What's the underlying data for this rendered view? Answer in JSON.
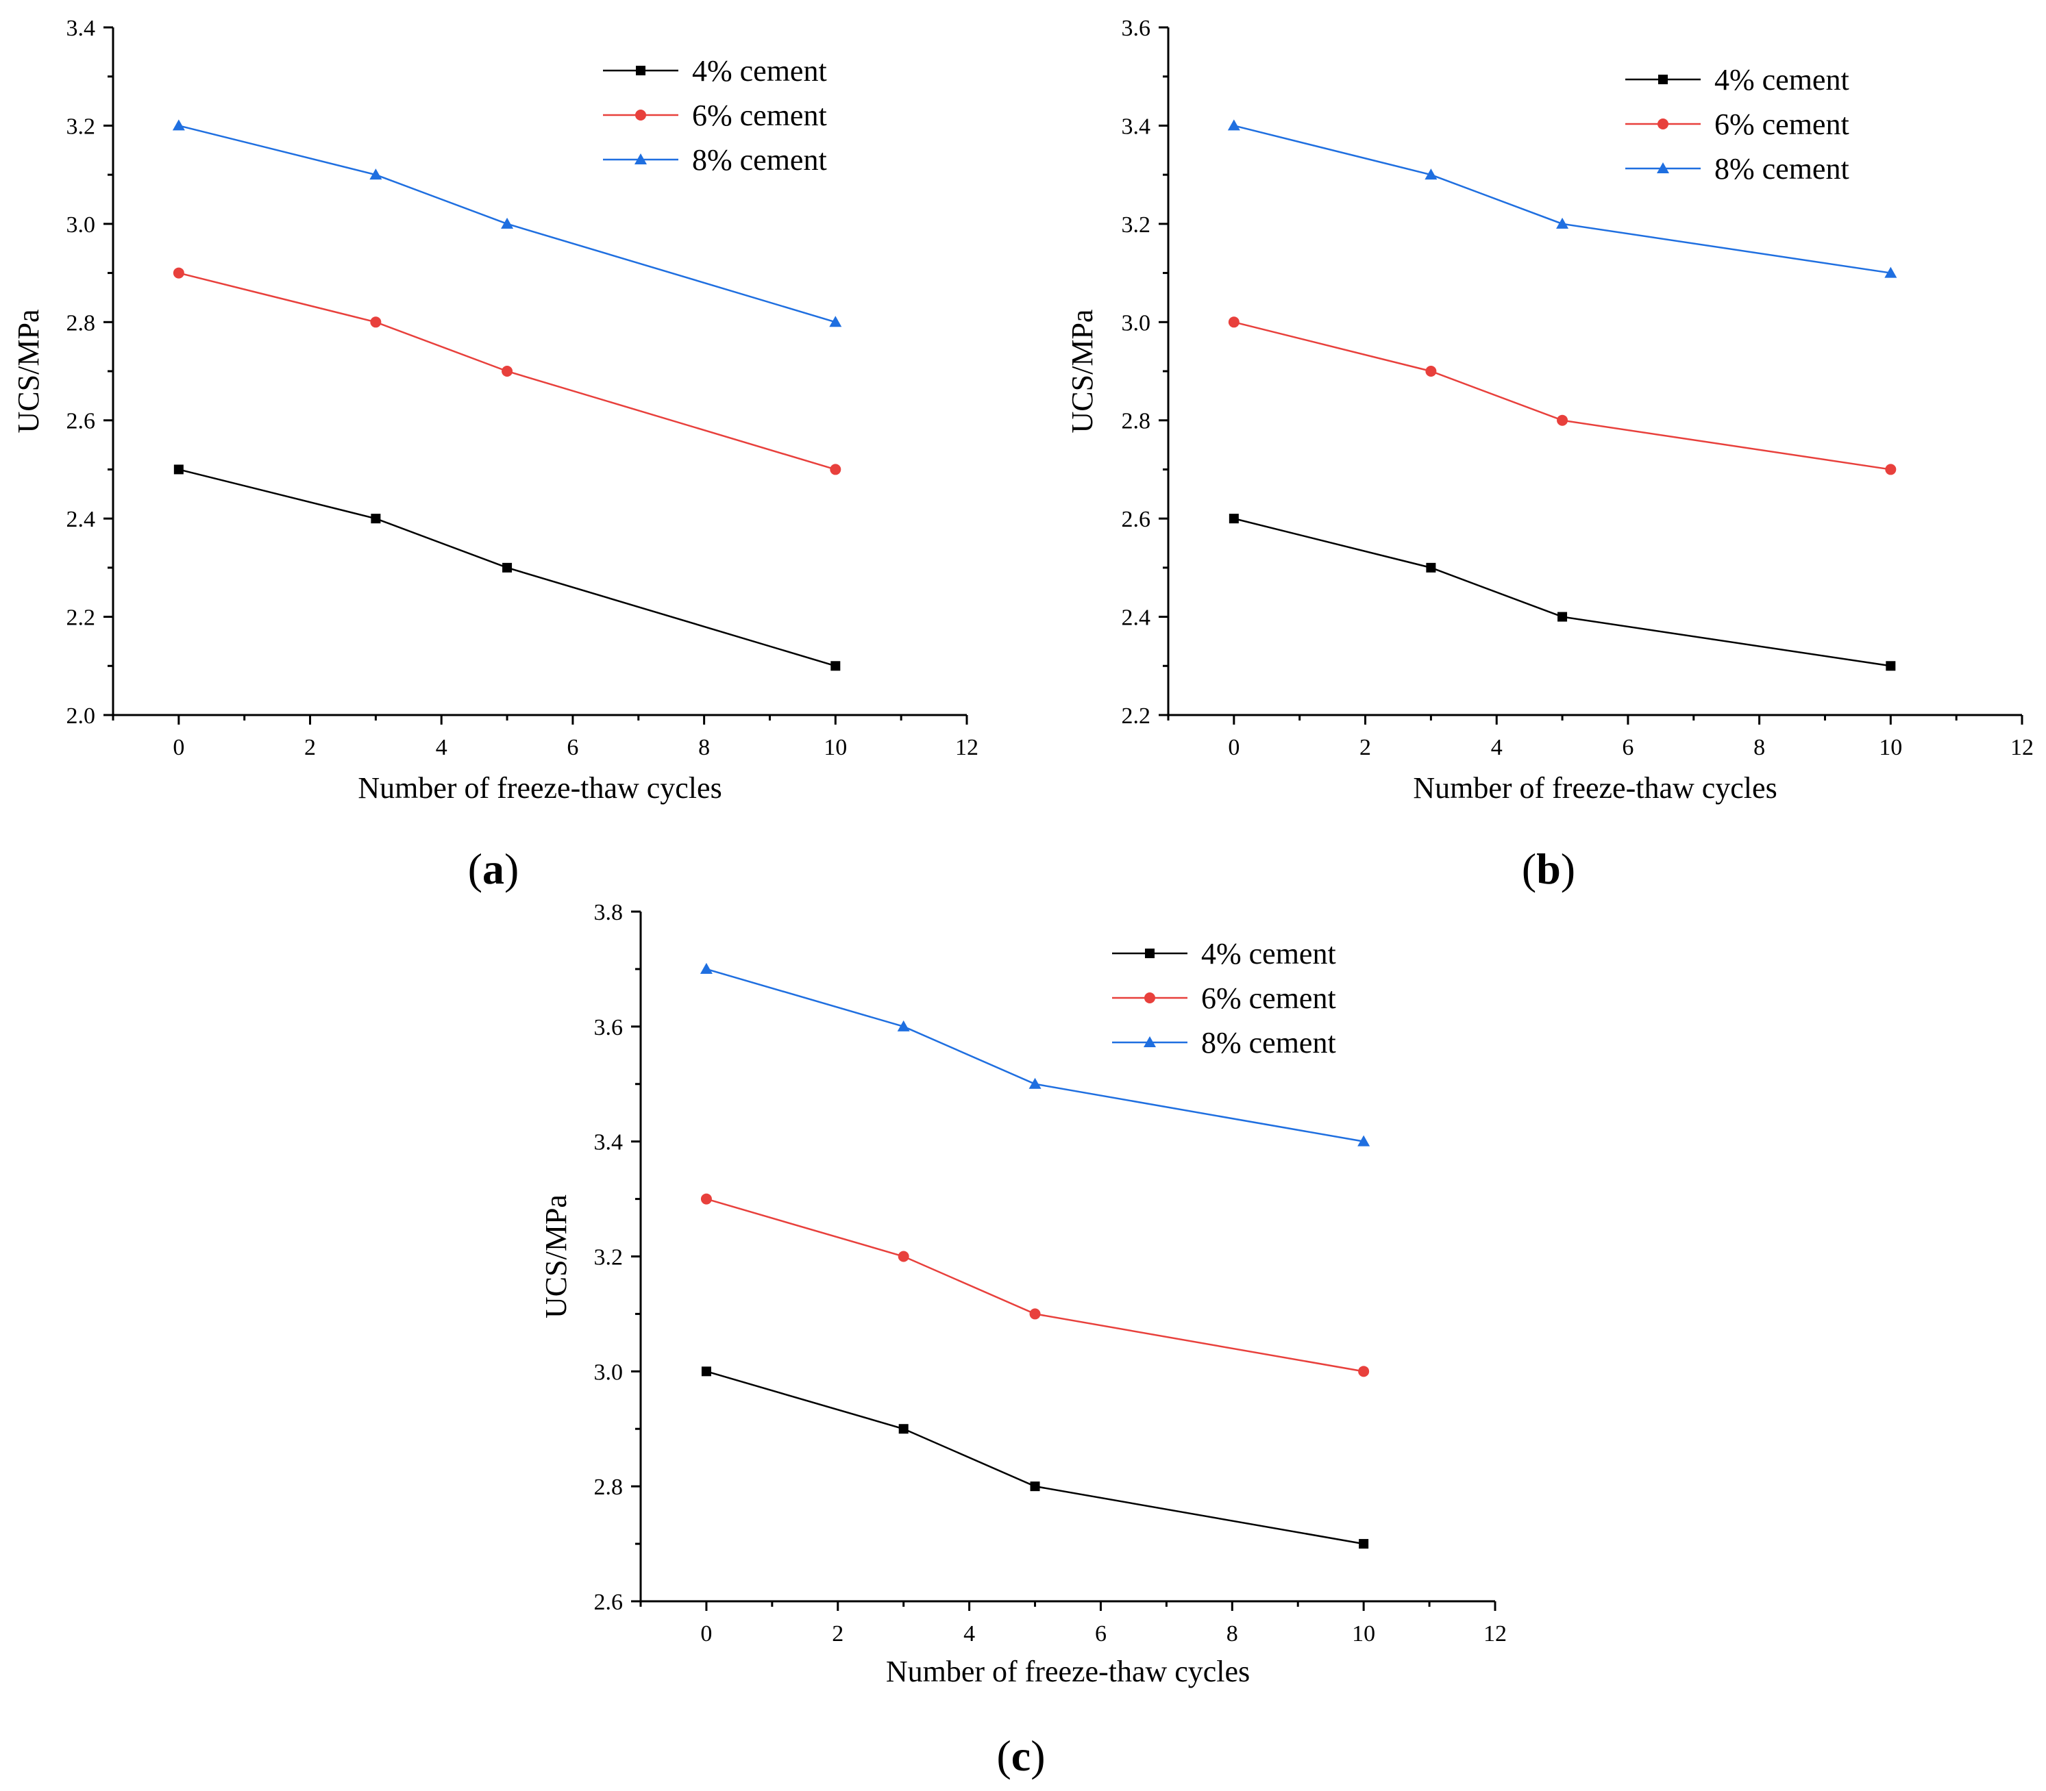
{
  "chart_data": [
    {
      "type": "line",
      "panel_label": "a",
      "xlabel": "Number of freeze-thaw cycles",
      "ylabel": "UCS/MPa",
      "xlim": [
        -1,
        12
      ],
      "ylim": [
        2.0,
        3.4
      ],
      "xticks": [
        0,
        2,
        4,
        6,
        8,
        10,
        12
      ],
      "xtick_labels": [
        "0",
        "2",
        "4",
        "6",
        "8",
        "10",
        "12"
      ],
      "yticks": [
        2.0,
        2.2,
        2.4,
        2.6,
        2.8,
        3.0,
        3.2,
        3.4
      ],
      "ytick_labels": [
        "2.0",
        "2.2",
        "2.4",
        "2.6",
        "2.8",
        "3.0",
        "3.2",
        "3.4"
      ],
      "grid": false,
      "legend_position": "top-right",
      "x": [
        0,
        3,
        5,
        10
      ],
      "series": [
        {
          "name": "4% cement",
          "color": "#000000",
          "marker": "square",
          "values": [
            2.5,
            2.4,
            2.3,
            2.1
          ]
        },
        {
          "name": "6% cement",
          "color": "#e8403c",
          "marker": "circle",
          "values": [
            2.9,
            2.8,
            2.7,
            2.5
          ]
        },
        {
          "name": "8% cement",
          "color": "#1f6fe0",
          "marker": "triangle",
          "values": [
            3.2,
            3.1,
            3.0,
            2.8
          ]
        }
      ]
    },
    {
      "type": "line",
      "panel_label": "b",
      "xlabel": "Number of freeze-thaw cycles",
      "ylabel": "UCS/MPa",
      "xlim": [
        -1,
        12
      ],
      "ylim": [
        2.2,
        3.6
      ],
      "xticks": [
        0,
        2,
        4,
        6,
        8,
        10,
        12
      ],
      "xtick_labels": [
        "0",
        "2",
        "4",
        "6",
        "8",
        "10",
        "12"
      ],
      "yticks": [
        2.2,
        2.4,
        2.6,
        2.8,
        3.0,
        3.2,
        3.4,
        3.6
      ],
      "ytick_labels": [
        "2.2",
        "2.4",
        "2.6",
        "2.8",
        "3.0",
        "3.2",
        "3.4",
        "3.6"
      ],
      "grid": false,
      "legend_position": "top-right",
      "x": [
        0,
        3,
        5,
        10
      ],
      "series": [
        {
          "name": "4% cement",
          "color": "#000000",
          "marker": "square",
          "values": [
            2.6,
            2.5,
            2.4,
            2.3
          ]
        },
        {
          "name": "6% cement",
          "color": "#e8403c",
          "marker": "circle",
          "values": [
            3.0,
            2.9,
            2.8,
            2.7
          ]
        },
        {
          "name": "8% cement",
          "color": "#1f6fe0",
          "marker": "triangle",
          "values": [
            3.4,
            3.3,
            3.2,
            3.1
          ]
        }
      ]
    },
    {
      "type": "line",
      "panel_label": "c",
      "xlabel": "Number of freeze-thaw cycles",
      "ylabel": "UCS/MPa",
      "xlim": [
        -1,
        12
      ],
      "ylim": [
        2.6,
        3.8
      ],
      "xticks": [
        0,
        2,
        4,
        6,
        8,
        10,
        12
      ],
      "xtick_labels": [
        "0",
        "2",
        "4",
        "6",
        "8",
        "10",
        "12"
      ],
      "yticks": [
        2.6,
        2.8,
        3.0,
        3.2,
        3.4,
        3.6,
        3.8
      ],
      "ytick_labels": [
        "2.6",
        "2.8",
        "3.0",
        "3.2",
        "3.4",
        "3.6",
        "3.8"
      ],
      "grid": false,
      "legend_position": "top-right",
      "x": [
        0,
        3,
        5,
        10
      ],
      "series": [
        {
          "name": "4% cement",
          "color": "#000000",
          "marker": "square",
          "values": [
            3.0,
            2.9,
            2.8,
            2.7
          ]
        },
        {
          "name": "6% cement",
          "color": "#e8403c",
          "marker": "circle",
          "values": [
            3.3,
            3.2,
            3.1,
            3.0
          ]
        },
        {
          "name": "8% cement",
          "color": "#1f6fe0",
          "marker": "triangle",
          "values": [
            3.7,
            3.6,
            3.5,
            3.4
          ]
        }
      ]
    }
  ]
}
